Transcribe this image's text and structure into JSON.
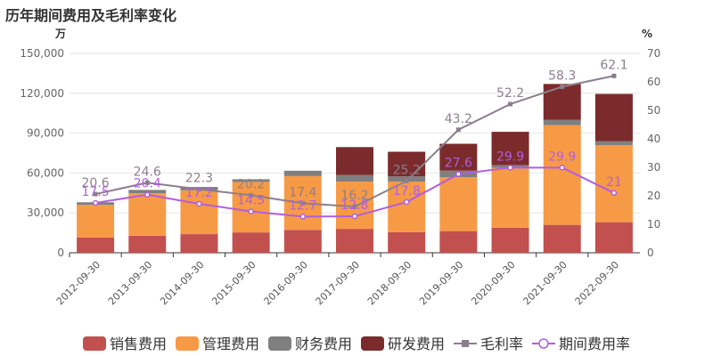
{
  "chart_data": {
    "type": "bar",
    "title": "历年期间费用及毛利率变化",
    "left_unit": "万",
    "right_unit": "%",
    "categories": [
      "2012-09-30",
      "2013-09-30",
      "2014-09-30",
      "2015-09-30",
      "2016-09-30",
      "2017-09-30",
      "2018-09-30",
      "2019-09-30",
      "2020-09-30",
      "2021-09-30",
      "2022-09-30"
    ],
    "left_axis": {
      "min": 0,
      "max": 150000,
      "ticks": [
        "0",
        "30,000",
        "60,000",
        "90,000",
        "120,000",
        "150,000"
      ],
      "tick_values": [
        0,
        30000,
        60000,
        90000,
        120000,
        150000
      ]
    },
    "right_axis": {
      "min": 0,
      "max": 70,
      "ticks": [
        "0",
        "10",
        "20",
        "30",
        "40",
        "50",
        "60",
        "70"
      ],
      "tick_values": [
        0,
        10,
        20,
        30,
        40,
        50,
        60,
        70
      ]
    },
    "stacked_series": [
      {
        "name": "销售费用",
        "color": "#c2504f",
        "values": [
          11500,
          12800,
          14000,
          15300,
          17200,
          18000,
          15500,
          16300,
          18800,
          21000,
          23000
        ]
      },
      {
        "name": "管理费用",
        "color": "#f79a46",
        "values": [
          24500,
          32000,
          33000,
          38000,
          40500,
          35500,
          38000,
          40500,
          45000,
          75000,
          58000
        ]
      },
      {
        "name": "财务费用",
        "color": "#7f7f7f",
        "values": [
          2000,
          2500,
          2500,
          2000,
          4000,
          5000,
          4000,
          5000,
          2200,
          4000,
          3000
        ]
      },
      {
        "name": "研发费用",
        "color": "#7b2b2b",
        "values": [
          0,
          0,
          0,
          0,
          0,
          21000,
          18500,
          20200,
          25000,
          27000,
          35500
        ]
      }
    ],
    "line_series": [
      {
        "name": "毛利率",
        "color": "#8c7f8c",
        "marker": "square",
        "values": [
          20.6,
          24.6,
          22.3,
          20.2,
          17.4,
          16.2,
          25.2,
          43.2,
          52.2,
          58.3,
          62.1
        ],
        "labels": [
          "20.6",
          "24.6",
          "22.3",
          "20.2",
          "17.4",
          "16.2",
          "25.2",
          "43.2",
          "52.2",
          "58.3",
          "62.1"
        ]
      },
      {
        "name": "期间费用率",
        "color": "#b15ee0",
        "marker": "circle",
        "values": [
          17.5,
          20.4,
          17.2,
          14.5,
          12.7,
          12.8,
          17.8,
          27.6,
          29.9,
          29.9,
          21
        ],
        "labels": [
          "17.5",
          "20.4",
          "17.2",
          "14.5",
          "12.7",
          "12.8",
          "17.8",
          "27.6",
          "29.9",
          "29.9",
          "21"
        ]
      }
    ],
    "legend": {
      "placement": "bottom",
      "items": [
        "销售费用",
        "管理费用",
        "财务费用",
        "研发费用",
        "毛利率",
        "期间费用率"
      ]
    }
  }
}
